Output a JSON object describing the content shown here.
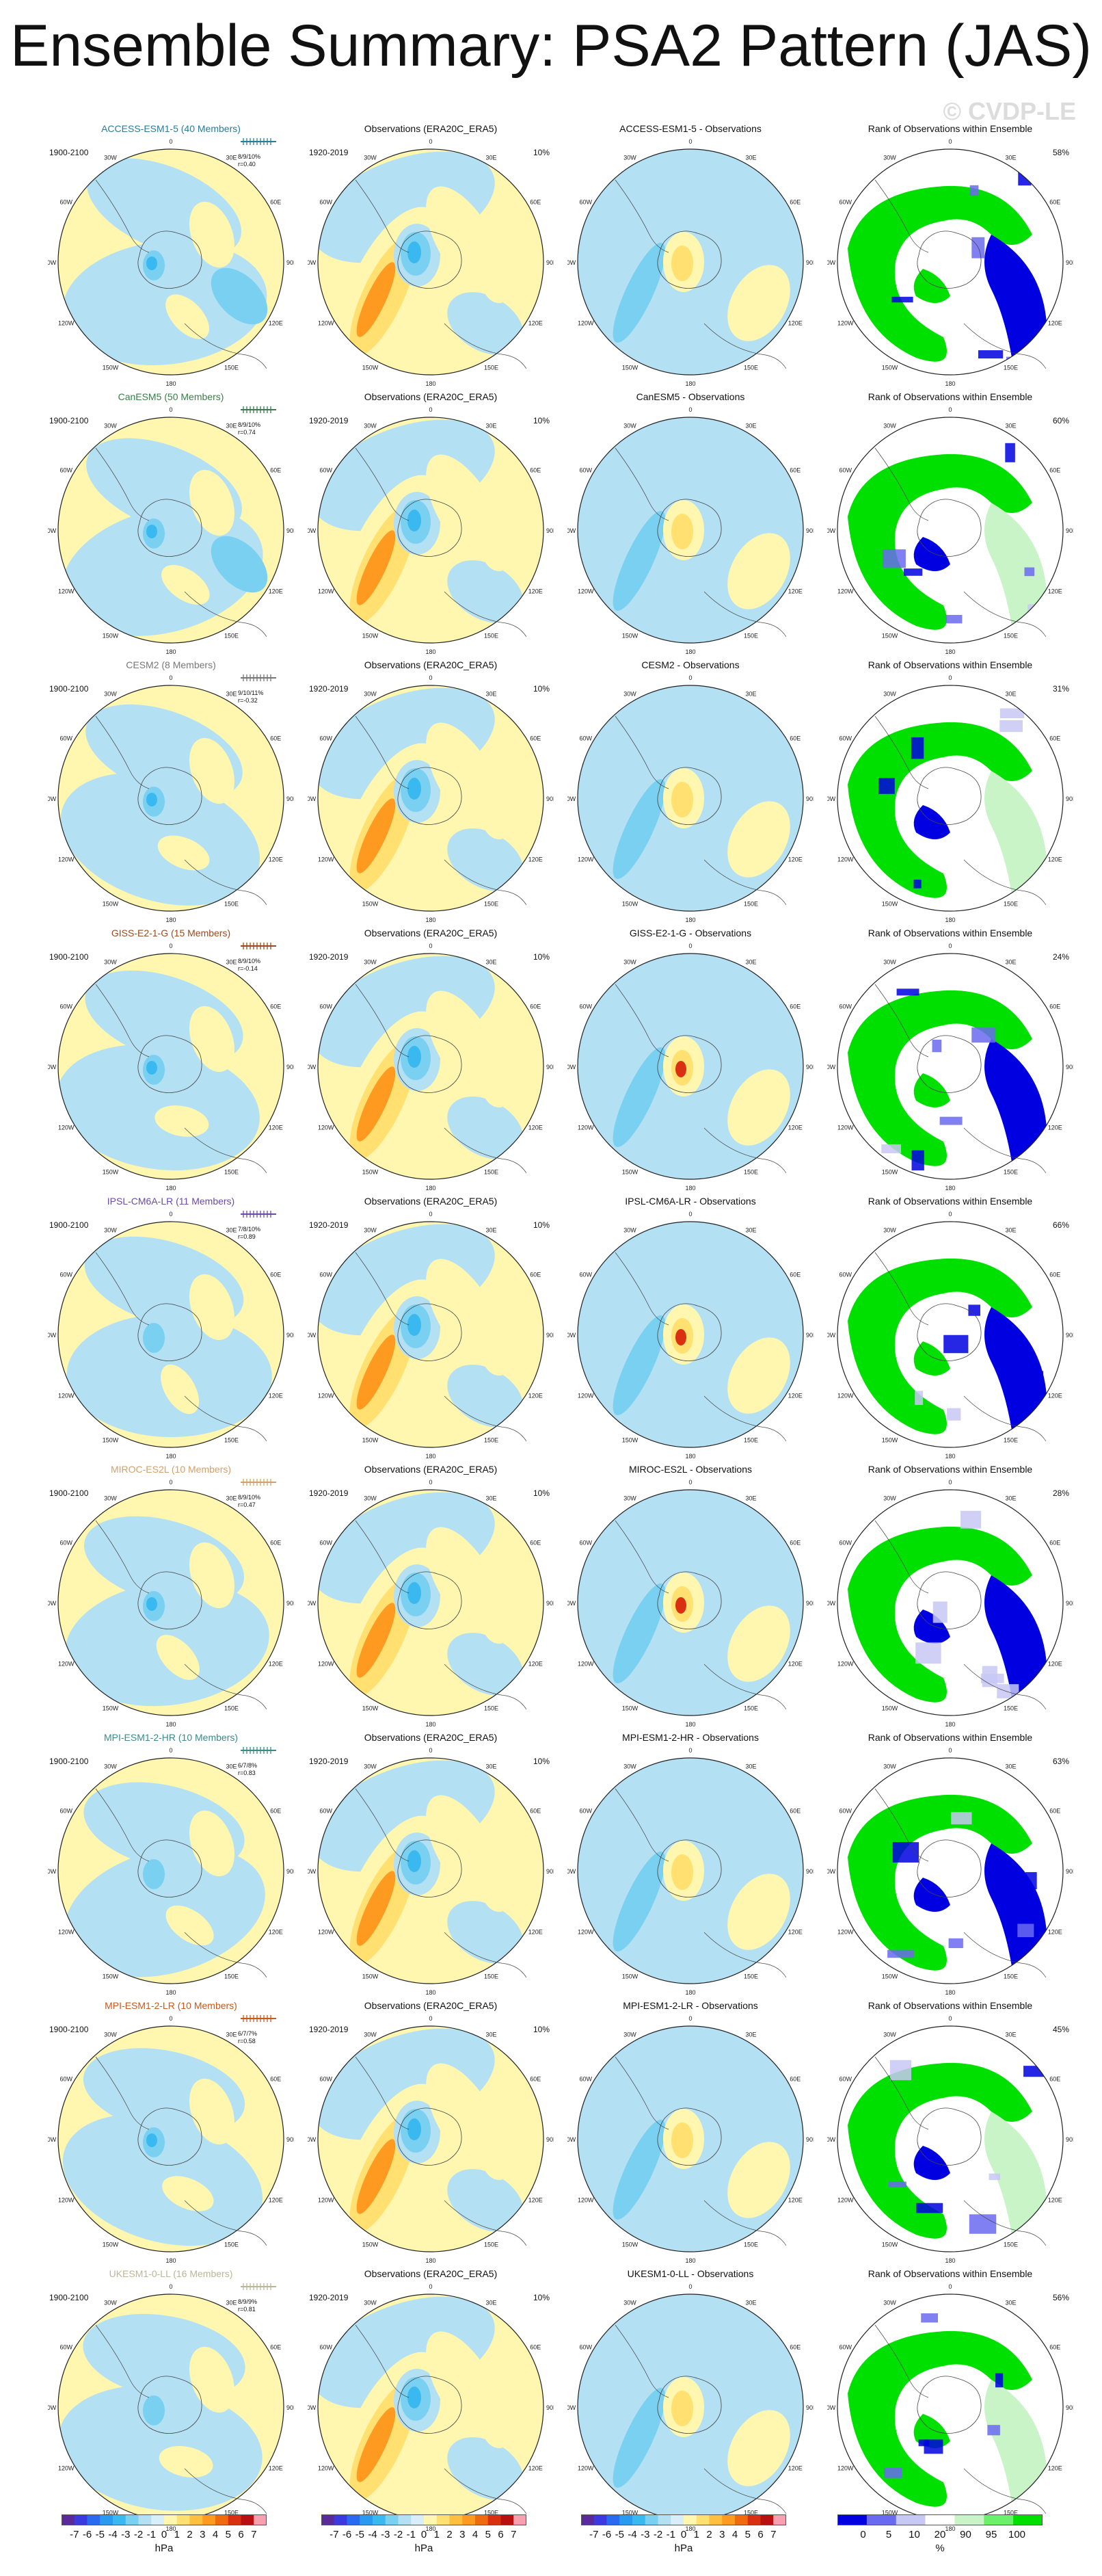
{
  "title": "Ensemble Summary: PSA2 Pattern (JAS)",
  "watermark": "© CVDP-LE",
  "chart_data": {
    "type": "polar-contour-map-grid",
    "columns": [
      "model",
      "observations",
      "model minus observations",
      "rank"
    ],
    "obs_title": "Observations (ERA20C_ERA5)",
    "obs_period": "1920-2019",
    "obs_pct": "10%",
    "model_period": "1900-2100",
    "diff_suffix": " - Observations",
    "rank_title": "Rank of Observations within Ensemble",
    "longitude_labels": [
      "0",
      "30E",
      "60E",
      "90E",
      "120E",
      "150E",
      "180",
      "150W",
      "120W",
      "90W",
      "60W",
      "30W"
    ],
    "rows": [
      {
        "model": "ACCESS-ESM1-5",
        "title": "ACCESS-ESM1-5 (40 Members)",
        "color": "#2b7b9a",
        "pct_range": "8/9/10%",
        "r": "r=0.40",
        "rank_pct": "58%"
      },
      {
        "model": "CanESM5",
        "title": "CanESM5 (50 Members)",
        "color": "#3a7d4a",
        "pct_range": "8/9/10%",
        "r": "r=0.74",
        "rank_pct": "60%"
      },
      {
        "model": "CESM2",
        "title": "CESM2 (8 Members)",
        "color": "#777777",
        "pct_range": "9/10/11%",
        "r": "r=-0.32",
        "rank_pct": "31%"
      },
      {
        "model": "GISS-E2-1-G",
        "title": "GISS-E2-1-G (15 Members)",
        "color": "#9a4a1c",
        "pct_range": "8/9/10%",
        "r": "r=-0.14",
        "rank_pct": "24%"
      },
      {
        "model": "IPSL-CM6A-LR",
        "title": "IPSL-CM6A-LR (11 Members)",
        "color": "#6a4aa8",
        "pct_range": "7/8/10%",
        "r": "r=0.89",
        "rank_pct": "66%"
      },
      {
        "model": "MIROC-ES2L",
        "title": "MIROC-ES2L (10 Members)",
        "color": "#d4a06a",
        "pct_range": "8/9/10%",
        "r": "r=0.47",
        "rank_pct": "28%"
      },
      {
        "model": "MPI-ESM1-2-HR",
        "title": "MPI-ESM1-2-HR (10 Members)",
        "color": "#3a8a8a",
        "pct_range": "6/7/8%",
        "r": "r=0.83",
        "rank_pct": "63%"
      },
      {
        "model": "MPI-ESM1-2-LR",
        "title": "MPI-ESM1-2-LR (10 Members)",
        "color": "#c8581c",
        "pct_range": "6/7/7%",
        "r": "r=0.58",
        "rank_pct": "45%"
      },
      {
        "model": "UKESM1-0-LL",
        "title": "UKESM1-0-LL (16 Members)",
        "color": "#b8b898",
        "pct_range": "8/9/9%",
        "r": "r=0.81",
        "rank_pct": "56%"
      }
    ],
    "colorbar_hpa": {
      "labels": [
        "-7",
        "-6",
        "-5",
        "-4",
        "-3",
        "-2",
        "-1",
        "0",
        "1",
        "2",
        "3",
        "4",
        "5",
        "6",
        "7"
      ],
      "unit": "hPa",
      "colors": [
        "#5a2a9a",
        "#3a3ae0",
        "#2a6af0",
        "#2a9af0",
        "#3ab8f0",
        "#7ad0f0",
        "#b4e0f4",
        "#d8eef8",
        "#fff6b0",
        "#ffe070",
        "#ffc040",
        "#ff9a20",
        "#f06a10",
        "#d83010",
        "#b81010",
        "#f8a0b0"
      ]
    },
    "colorbar_rank": {
      "labels": [
        "0",
        "5",
        "10",
        "20",
        "90",
        "95",
        "100"
      ],
      "unit": "%",
      "colors": [
        "#0000e0",
        "#6a6af0",
        "#c8c8f4",
        "#ffffff",
        "#c8f4c8",
        "#6af06a",
        "#00e000"
      ]
    }
  }
}
